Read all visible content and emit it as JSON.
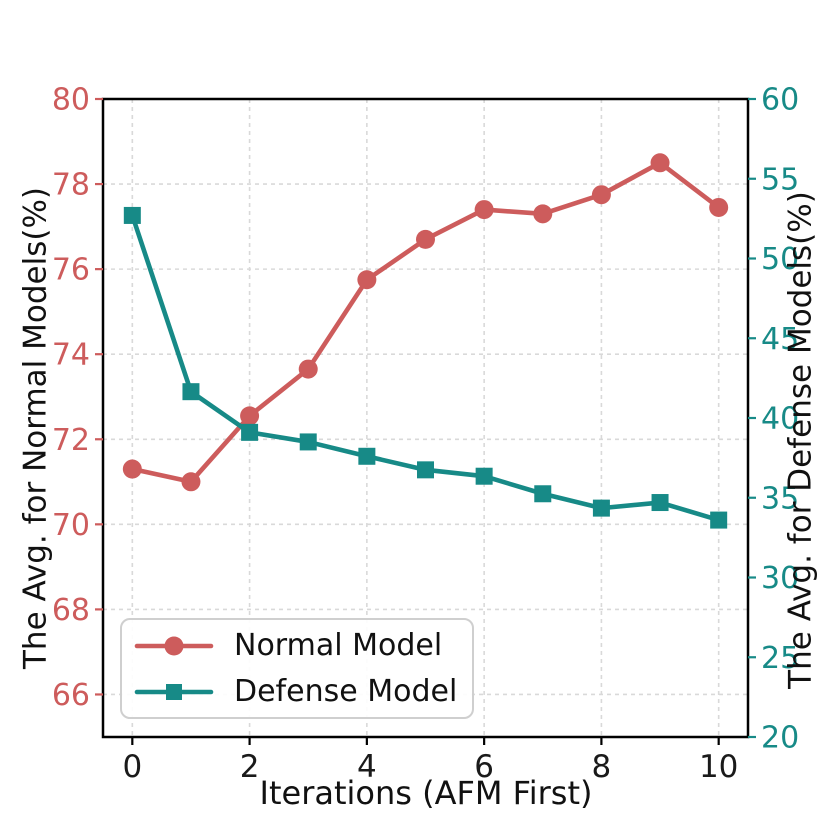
{
  "chart_data": {
    "type": "line",
    "x": [
      0,
      1,
      2,
      3,
      4,
      5,
      6,
      7,
      8,
      9,
      10
    ],
    "series": [
      {
        "name": "Normal Model",
        "axis": "left",
        "color": "#cd5c5c",
        "marker": "circle",
        "values": [
          71.3,
          71.0,
          72.55,
          73.65,
          75.75,
          76.7,
          77.4,
          77.3,
          77.75,
          78.5,
          77.45
        ]
      },
      {
        "name": "Defense Model",
        "axis": "right",
        "color": "#178a87",
        "marker": "square",
        "values": [
          52.7,
          41.65,
          39.1,
          38.5,
          37.6,
          36.75,
          36.35,
          35.25,
          34.35,
          34.7,
          33.6
        ]
      }
    ],
    "title": "",
    "xlabel": "Iterations (AFM First)",
    "ylabel_left": "The Avg. for Normal Models(%)",
    "ylabel_right": "The Avg. for Defense Models(%)",
    "xlim": [
      -0.5,
      10.5
    ],
    "ylim_left": [
      65,
      80
    ],
    "ylim_right": [
      20,
      60
    ],
    "xticks": [
      0,
      2,
      4,
      6,
      8,
      10
    ],
    "yticks_left": [
      66,
      68,
      70,
      72,
      74,
      76,
      78,
      80
    ],
    "yticks_right": [
      20,
      25,
      30,
      35,
      40,
      45,
      50,
      55,
      60
    ],
    "grid": true,
    "legend_position": "lower left",
    "legend_labels": [
      "Normal Model",
      "Defense Model"
    ]
  },
  "colors": {
    "normal_series": "#cd5c5c",
    "defense_series": "#178a87",
    "left_axis_text": "#cd5c5c",
    "right_axis_text": "#178a87",
    "x_axis_text": "#1a1a1a",
    "grid": "#d9d9d9",
    "spine": "#000000",
    "legend_border": "#cfcfcf",
    "background": "#ffffff"
  }
}
